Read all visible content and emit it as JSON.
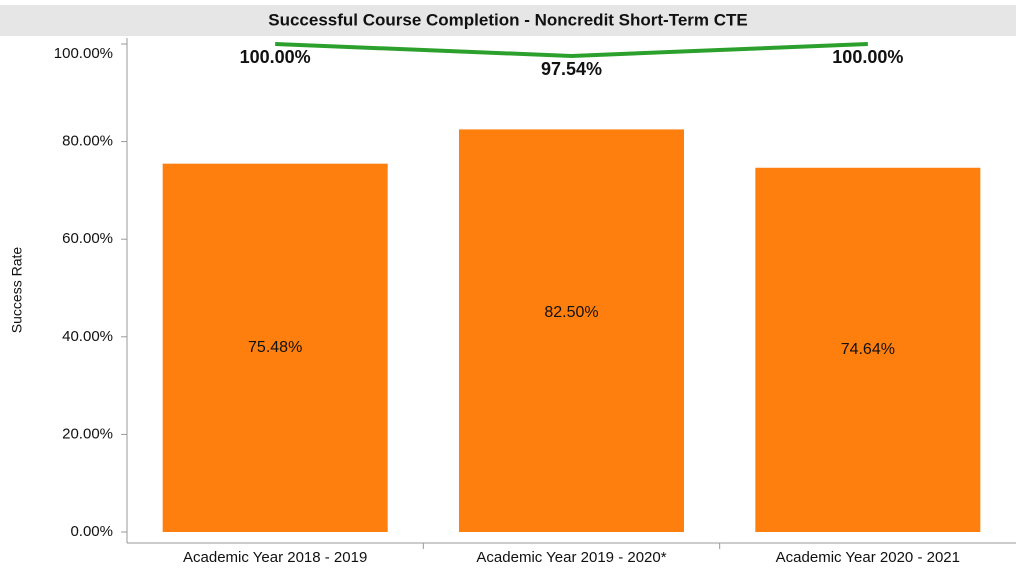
{
  "chart_data": {
    "type": "bar",
    "title": "Successful Course Completion - Noncredit Short-Term CTE",
    "y_label": "Success Rate",
    "categories": [
      "Academic Year 2018 - 2019",
      "Academic Year 2019 - 2020*",
      "Academic Year 2020 - 2021"
    ],
    "series": [
      {
        "type": "bar",
        "color": "#ff7f0e",
        "values": [
          75.48,
          82.5,
          74.64
        ],
        "value_labels": [
          "75.48%",
          "82.50%",
          "74.64%"
        ]
      },
      {
        "type": "line",
        "color": "#2ca02c",
        "values": [
          100,
          97.54,
          100
        ],
        "value_labels": [
          "100.00%",
          "97.54%",
          "100.00%"
        ]
      }
    ],
    "ylim": [
      0,
      100
    ],
    "yticks": [
      {
        "value": 0,
        "label": "0.00%"
      },
      {
        "value": 20,
        "label": "20.00%"
      },
      {
        "value": 40,
        "label": "40.00%"
      },
      {
        "value": 60,
        "label": "60.00%"
      },
      {
        "value": 80,
        "label": "80.00%"
      },
      {
        "value": 100,
        "label": "100.00%"
      }
    ],
    "grid": false
  }
}
